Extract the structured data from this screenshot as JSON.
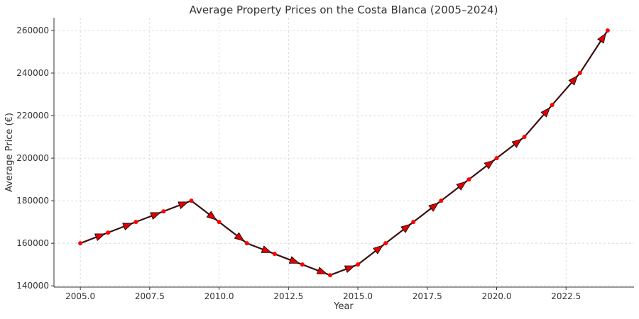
{
  "chart_data": {
    "type": "line",
    "title": "Average Property Prices on the Costa Blanca (2005–2024)",
    "xlabel": "Year",
    "ylabel": "Average Price (€)",
    "x": [
      2005,
      2006,
      2007,
      2008,
      2009,
      2010,
      2011,
      2012,
      2013,
      2014,
      2015,
      2016,
      2017,
      2018,
      2019,
      2020,
      2021,
      2022,
      2023,
      2024
    ],
    "values": [
      160000,
      165000,
      170000,
      175000,
      180000,
      170000,
      160000,
      155000,
      150000,
      145000,
      150000,
      160000,
      170000,
      180000,
      190000,
      200000,
      210000,
      225000,
      240000,
      260000
    ],
    "xlim": [
      2004.05,
      2024.95
    ],
    "ylim": [
      139400,
      266000
    ],
    "xticks": [
      "2005.0",
      "2007.5",
      "2010.0",
      "2012.5",
      "2015.0",
      "2017.5",
      "2020.0",
      "2022.5"
    ],
    "yticks": [
      "140000",
      "160000",
      "180000",
      "200000",
      "220000",
      "240000",
      "260000"
    ],
    "grid": true,
    "line_color": "#3b0f0f",
    "marker_color": "#ff0000",
    "arrow_color": "#e00000"
  }
}
